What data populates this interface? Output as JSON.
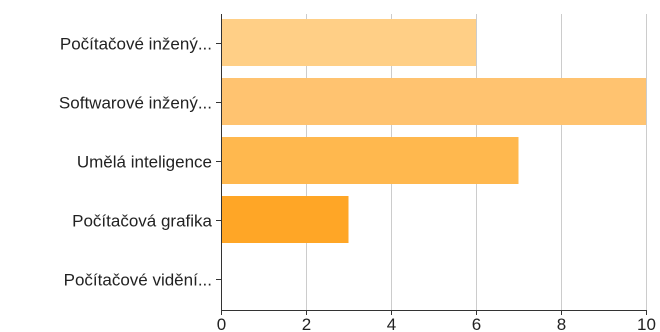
{
  "chart_data": {
    "type": "bar",
    "orientation": "horizontal",
    "categories": [
      "Počítačové inžený...",
      "Softwarové inžený...",
      "Umělá inteligence",
      "Počítačová grafika",
      "Počítačové vidění..."
    ],
    "values": [
      6,
      10,
      7,
      3,
      0
    ],
    "colors": [
      "#ffcf86",
      "#ffc370",
      "#ffb84e",
      "#ffa626",
      "#ff9900"
    ],
    "xlim": [
      0,
      10
    ],
    "xticks": [
      0,
      2,
      4,
      6,
      8,
      10
    ],
    "grid": true
  }
}
